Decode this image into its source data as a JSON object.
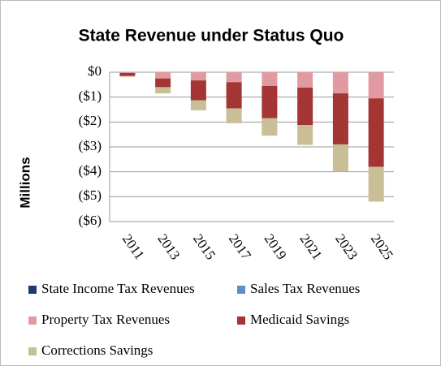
{
  "chart_data": {
    "type": "stacked_bar",
    "title": "State Revenue under Status Quo",
    "y_label": "Millions",
    "categories": [
      "2011",
      "2013",
      "2015",
      "2017",
      "2019",
      "2021",
      "2023",
      "2025"
    ],
    "series": [
      {
        "name": "State Income Tax Revenues",
        "color": "#1f3a6e",
        "values": [
          0,
          0,
          0,
          0,
          0,
          0,
          0,
          0
        ]
      },
      {
        "name": "Sales Tax Revenues",
        "color": "#5b8fc8",
        "values": [
          0,
          0,
          0,
          0,
          0,
          0,
          0,
          0
        ]
      },
      {
        "name": "Property Tax Revenues",
        "color": "#e29aa2",
        "values": [
          -0.03,
          -0.25,
          -0.33,
          -0.4,
          -0.55,
          -0.62,
          -0.85,
          -1.05
        ]
      },
      {
        "name": "Medicaid Savings",
        "color": "#a33535",
        "values": [
          -0.12,
          -0.35,
          -0.8,
          -1.05,
          -1.3,
          -1.5,
          -2.05,
          -2.75
        ]
      },
      {
        "name": "Corrections Savings",
        "color": "#c8bf96",
        "values": [
          -0.03,
          -0.25,
          -0.4,
          -0.6,
          -0.7,
          -0.8,
          -1.1,
          -1.4
        ]
      }
    ],
    "ylim": [
      -6,
      0
    ],
    "yticks": [
      {
        "value": 0,
        "label": "$0"
      },
      {
        "value": -1,
        "label": "($1)"
      },
      {
        "value": -2,
        "label": "($2)"
      },
      {
        "value": -3,
        "label": "($3)"
      },
      {
        "value": -4,
        "label": "($4)"
      },
      {
        "value": -5,
        "label": "($5)"
      },
      {
        "value": -6,
        "label": "($6)"
      }
    ],
    "grid": true
  }
}
